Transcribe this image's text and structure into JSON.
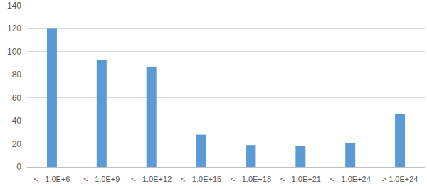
{
  "chart_data": {
    "type": "bar",
    "categories": [
      "<= 1.0E+6",
      "<= 1.0E+9",
      "<= 1.0E+12",
      "<= 1.0E+15",
      "<= 1.0E+18",
      "<= 1.0E+21",
      "<= 1.0E+24",
      "> 1.0E+24"
    ],
    "values": [
      120,
      93,
      87,
      28,
      19,
      18,
      21,
      46
    ],
    "color": "#5b9bd5",
    "ylim": [
      0,
      140
    ],
    "yticks": [
      0,
      20,
      40,
      60,
      80,
      100,
      120,
      140
    ],
    "grid": true
  }
}
